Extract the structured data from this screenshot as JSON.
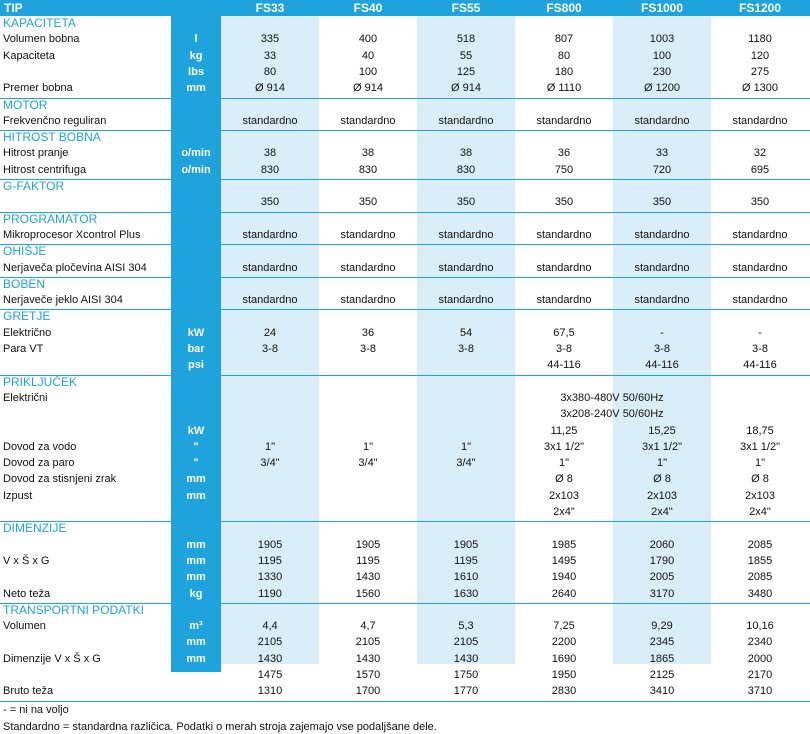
{
  "header": {
    "tip": "TIP",
    "models": [
      "FS33",
      "FS40",
      "FS55",
      "FS800",
      "FS1000",
      "FS1200"
    ]
  },
  "colors": {
    "accent": "#1fa3dc",
    "shade": "#d9eef9",
    "header_bg": "#1fa3dc"
  },
  "sections": [
    {
      "title": "KAPACITETA",
      "rows": [
        {
          "label": "Volumen bobna",
          "unit": "l",
          "values": [
            "335",
            "400",
            "518",
            "807",
            "1003",
            "1180"
          ]
        },
        {
          "label": "Kapaciteta",
          "unit": "kg",
          "values": [
            "33",
            "40",
            "55",
            "80",
            "100",
            "120"
          ]
        },
        {
          "label": "",
          "unit": "lbs",
          "values": [
            "80",
            "100",
            "125",
            "180",
            "230",
            "275"
          ]
        },
        {
          "label": "Premer bobna",
          "unit": "mm",
          "values": [
            "Ø 914",
            "Ø 914",
            "Ø 914",
            "Ø 1110",
            "Ø 1200",
            "Ø 1300"
          ]
        }
      ]
    },
    {
      "title": "MOTOR",
      "rows": [
        {
          "label": "Frekvenčno reguliran",
          "unit": "",
          "values": [
            "standardno",
            "standardno",
            "standardno",
            "standardno",
            "standardno",
            "standardno"
          ]
        }
      ]
    },
    {
      "title": "HITROST BOBNA",
      "rows": [
        {
          "label": "Hitrost pranje",
          "unit": "o/min",
          "values": [
            "38",
            "38",
            "38",
            "36",
            "33",
            "32"
          ]
        },
        {
          "label": "Hitrost centrifuga",
          "unit": "o/min",
          "values": [
            "830",
            "830",
            "830",
            "750",
            "720",
            "695"
          ]
        }
      ]
    },
    {
      "title": "G-FAKTOR",
      "rows": [
        {
          "label": "",
          "unit": "",
          "values": [
            "350",
            "350",
            "350",
            "350",
            "350",
            "350"
          ]
        }
      ]
    },
    {
      "title": "PROGRAMATOR",
      "rows": [
        {
          "label": "Mikroprocesor Xcontrol Plus",
          "unit": "",
          "values": [
            "standardno",
            "standardno",
            "standardno",
            "standardno",
            "standardno",
            "standardno"
          ]
        }
      ]
    },
    {
      "title": "OHIŠJE",
      "rows": [
        {
          "label": "Nerjaveča pločevina AISI 304",
          "unit": "",
          "values": [
            "standardno",
            "standardno",
            "standardno",
            "standardno",
            "standardno",
            "standardno"
          ]
        }
      ]
    },
    {
      "title": "BOBEN",
      "rows": [
        {
          "label": "Nerjaveče jeklo AISI 304",
          "unit": "",
          "values": [
            "standardno",
            "standardno",
            "standardno",
            "standardno",
            "standardno",
            "standardno"
          ]
        }
      ]
    },
    {
      "title": "GRETJE",
      "rows": [
        {
          "label": "Električno",
          "unit": "kW",
          "values": [
            "24",
            "36",
            "54",
            "67,5",
            "-",
            "-"
          ]
        },
        {
          "label": "Para VT",
          "unit": "bar",
          "values": [
            "3-8",
            "3-8",
            "3-8",
            "3-8",
            "3-8",
            "3-8"
          ]
        },
        {
          "label": "",
          "unit": "psi",
          "values": [
            "",
            "",
            "",
            "44-116",
            "44-116",
            "44-116"
          ]
        }
      ]
    },
    {
      "title": "PRIKLJUČEK",
      "rows": [
        {
          "label": "Električni",
          "unit": "",
          "merged": "3x380-480V 50/60Hz",
          "values": []
        },
        {
          "label": "",
          "unit": "",
          "merged": "3x208-240V 50/60Hz",
          "values": []
        },
        {
          "label": "",
          "unit": "kW",
          "values": [
            "",
            "",
            "",
            "11,25",
            "15,25",
            "18,75"
          ]
        },
        {
          "label": "Dovod za vodo",
          "unit": "\"",
          "values": [
            "1\"",
            "1\"",
            "1\"",
            "3x1 1/2\"",
            "3x1 1/2\"",
            "3x1 1/2\""
          ]
        },
        {
          "label": "Dovod za paro",
          "unit": "\"",
          "values": [
            "3/4\"",
            "3/4\"",
            "3/4\"",
            "1\"",
            "1\"",
            "1\""
          ]
        },
        {
          "label": "Dovod za stisnjeni zrak",
          "unit": "mm",
          "values": [
            "",
            "",
            "",
            "Ø 8",
            "Ø 8",
            "Ø 8"
          ]
        },
        {
          "label": "Izpust",
          "unit": "mm",
          "values": [
            "",
            "",
            "",
            "2x103",
            "2x103",
            "2x103"
          ]
        },
        {
          "label": "",
          "unit": "",
          "values": [
            "",
            "",
            "",
            "2x4\"",
            "2x4\"",
            "2x4\""
          ]
        }
      ]
    },
    {
      "title": "DIMENZIJE",
      "rows": [
        {
          "label": "",
          "unit": "mm",
          "values": [
            "1905",
            "1905",
            "1905",
            "1985",
            "2060",
            "2085"
          ]
        },
        {
          "label": "V x Š x G",
          "unit": "mm",
          "values": [
            "1195",
            "1195",
            "1195",
            "1495",
            "1790",
            "1855"
          ]
        },
        {
          "label": "",
          "unit": "mm",
          "values": [
            "1330",
            "1430",
            "1610",
            "1940",
            "2005",
            "2085"
          ]
        },
        {
          "label": "Neto teža",
          "unit": "kg",
          "values": [
            "1190",
            "1560",
            "1630",
            "2640",
            "3170",
            "3480"
          ]
        }
      ]
    },
    {
      "title": "TRANSPORTNI PODATKI",
      "rows": [
        {
          "label": "Volumen",
          "unit": "m³",
          "values": [
            "4,4",
            "4,7",
            "5,3",
            "7,25",
            "9,29",
            "10,16"
          ]
        },
        {
          "label": "",
          "unit": "mm",
          "values": [
            "2105",
            "2105",
            "2105",
            "2200",
            "2345",
            "2340"
          ]
        },
        {
          "label": "Dimenzije V x Š x G",
          "unit": "mm",
          "values": [
            "1430",
            "1430",
            "1430",
            "1690",
            "1865",
            "2000"
          ]
        },
        {
          "label": "",
          "unit": "mm",
          "values": [
            "1475",
            "1570",
            "1750",
            "1950",
            "2125",
            "2170"
          ]
        },
        {
          "label": "Bruto teža",
          "unit": "kg",
          "values": [
            "1310",
            "1700",
            "1770",
            "2830",
            "3410",
            "3710"
          ]
        }
      ]
    }
  ],
  "footnotes": [
    "- = ni na voljo",
    "Standardno = standardna različica. Podatki o merah stroja zajemajo vse podaljšane dele."
  ]
}
